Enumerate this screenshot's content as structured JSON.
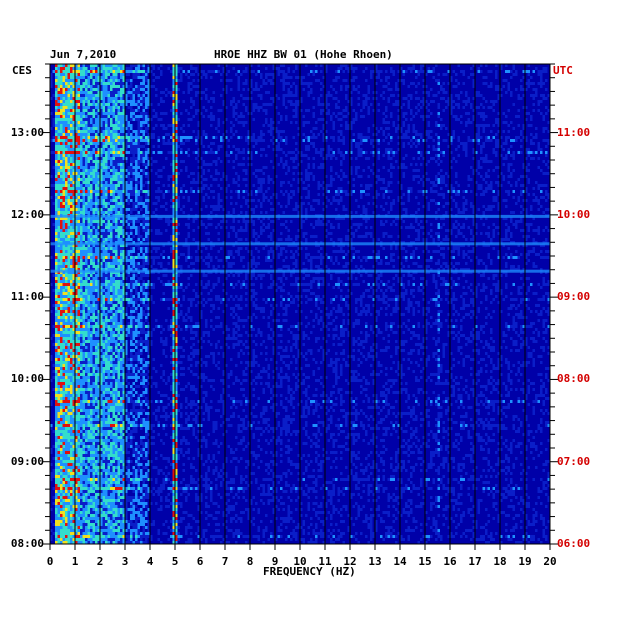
{
  "header": {
    "date": "Jun 7,2010",
    "station": "HROE HHZ BW 01 (Hohe Rhoen)"
  },
  "chart_data": {
    "type": "heatmap",
    "title": "HROE HHZ BW 01 (Hohe Rhoen)",
    "date": "Jun 7,2010",
    "xlabel": "FREQUENCY (HZ)",
    "xlim": [
      0,
      20
    ],
    "x_ticks": [
      "0",
      "1",
      "2",
      "3",
      "4",
      "5",
      "6",
      "7",
      "8",
      "9",
      "10",
      "11",
      "12",
      "13",
      "14",
      "15",
      "16",
      "17",
      "18",
      "19",
      "20"
    ],
    "left_axis_label": "CES",
    "right_axis_label": "UTC",
    "left_ticks": [
      "13:00",
      "12:00",
      "11:00",
      "10:00",
      "09:00",
      "08:00"
    ],
    "right_ticks": [
      "11:00",
      "10:00",
      "09:00",
      "08:00",
      "07:00",
      "06:00"
    ],
    "time_range_ces": [
      "08:00",
      "13:50"
    ],
    "grid": true,
    "colors": {
      "background": "#0000a8",
      "low": "#0a1ec8",
      "mid": "#1e90ff",
      "high": "#33ddcc",
      "peak_yellow": "#f0e020",
      "peak_red": "#e01010",
      "gridline": "#000000",
      "utc_label": "#d40000"
    },
    "energy_bands_hz": [
      {
        "from": 0.2,
        "to": 1.2,
        "level": "very high"
      },
      {
        "from": 1.2,
        "to": 3.0,
        "level": "high"
      },
      {
        "from": 3.0,
        "to": 4.0,
        "level": "medium"
      },
      {
        "from": 4.8,
        "to": 5.0,
        "level": "high line"
      },
      {
        "from": 5.0,
        "to": 20.0,
        "level": "low"
      }
    ],
    "notable_lines_hz": [
      5.0,
      15.5
    ],
    "notable_events_ces": [
      "12:00",
      "11:40",
      "11:20"
    ]
  }
}
